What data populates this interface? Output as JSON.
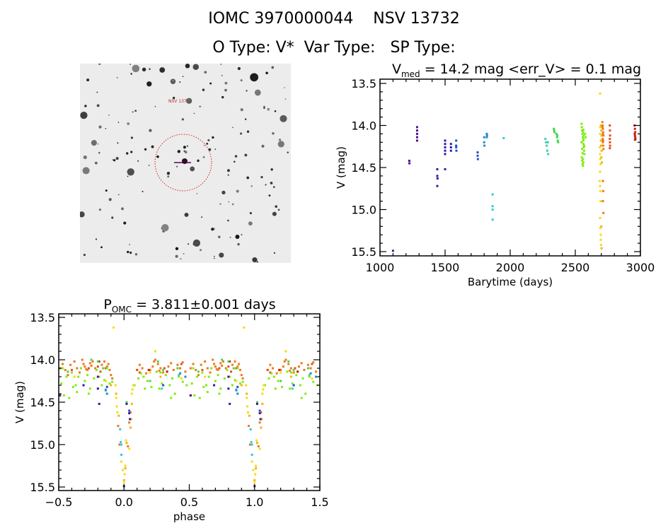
{
  "header": {
    "line1": "IOMC 3970000044    NSV 13732",
    "line2": "O Type: V*  Var Type:   SP Type:"
  },
  "image_panel": {
    "target_label": "NSV 13732"
  },
  "colors": {
    "purple": "#50108a",
    "indigo": "#3018a8",
    "blue": "#2050c8",
    "azure": "#1c8ad8",
    "cyan": "#30c8e0",
    "teal": "#40d0b0",
    "green": "#40d850",
    "lime": "#80ec10",
    "yellow": "#f4dc10",
    "gold": "#f4b010",
    "orange": "#f07818",
    "redorange": "#e05020",
    "red": "#d02010"
  },
  "chart_data": [
    {
      "type": "scatter",
      "title_main": "V",
      "title_sub": "med",
      "title_rest": " = 14.2 mag <err_V> = 0.1 mag",
      "xlabel": "Barytime (days)",
      "ylabel": "V (mag)",
      "xlim": [
        1000,
        3000
      ],
      "ylim": [
        15.5,
        13.5
      ],
      "xticks": [
        1000,
        1500,
        2000,
        2500,
        3000
      ],
      "xtick_labels": [
        "1000",
        "1500",
        "2000",
        "2500",
        "3000"
      ],
      "yticks": [
        13.5,
        14.0,
        14.5,
        15.0,
        15.5
      ],
      "ytick_labels": [
        "13.5",
        "14.0",
        "14.5",
        "15.0",
        "15.5"
      ],
      "series": [
        {
          "color": "purple",
          "x": [
            1100,
            1225,
            1226,
            1285,
            1285,
            1285,
            1285,
            1285
          ],
          "y": [
            15.49,
            14.42,
            14.45,
            14.02,
            14.06,
            14.1,
            14.14,
            14.18
          ]
        },
        {
          "color": "indigo",
          "x": [
            1440,
            1440,
            1442,
            1440,
            1500,
            1500,
            1500,
            1500,
            1500,
            1500,
            1545,
            1545,
            1545
          ],
          "y": [
            14.52,
            14.6,
            14.63,
            14.72,
            14.18,
            14.22,
            14.26,
            14.3,
            14.34,
            14.52,
            14.22,
            14.26,
            14.3
          ]
        },
        {
          "color": "blue",
          "x": [
            1585,
            1585,
            1585,
            1587,
            1750,
            1750,
            1752
          ],
          "y": [
            14.18,
            14.24,
            14.26,
            14.3,
            14.32,
            14.36,
            14.4
          ]
        },
        {
          "color": "azure",
          "x": [
            1800,
            1800,
            1802,
            1820,
            1822,
            1820
          ],
          "y": [
            14.14,
            14.2,
            14.24,
            14.1,
            14.12,
            14.14
          ]
        },
        {
          "color": "cyan",
          "x": [
            1865,
            1865,
            1865,
            1865,
            1950
          ],
          "y": [
            14.82,
            14.96,
            15.0,
            15.12,
            14.15
          ]
        },
        {
          "color": "teal",
          "x": [
            2270,
            2275,
            2280,
            2285,
            2290,
            2292
          ],
          "y": [
            14.16,
            14.2,
            14.24,
            14.3,
            14.2,
            14.34
          ]
        },
        {
          "color": "green",
          "x": [
            2335,
            2338,
            2340,
            2355,
            2360,
            2362,
            2365,
            2368
          ],
          "y": [
            14.04,
            14.06,
            14.08,
            14.1,
            14.14,
            14.12,
            14.18,
            14.2
          ]
        },
        {
          "color": "lime",
          "x": [
            2548,
            2550,
            2552,
            2555,
            2558,
            2560,
            2562,
            2565,
            2568,
            2570,
            2550,
            2553,
            2556,
            2559,
            2562,
            2565,
            2548,
            2552,
            2556,
            2560,
            2564,
            2568,
            2575,
            2580,
            2558,
            2562
          ],
          "y": [
            13.98,
            14.02,
            14.06,
            14.1,
            14.14,
            14.18,
            14.22,
            14.26,
            14.3,
            14.34,
            14.38,
            14.42,
            14.46,
            14.48,
            14.05,
            14.12,
            14.2,
            14.28,
            14.33,
            14.08,
            14.16,
            14.24,
            14.1,
            14.14,
            14.4,
            14.44
          ]
        },
        {
          "color": "yellow",
          "x": [
            2690,
            2692,
            2690,
            2695,
            2688,
            2690,
            2692,
            2694,
            2690,
            2688,
            2690,
            2692,
            2694,
            2690,
            2692,
            2696,
            2695,
            2698
          ],
          "y": [
            13.62,
            14.02,
            14.1,
            14.18,
            14.26,
            14.34,
            14.4,
            14.46,
            14.55,
            14.66,
            14.72,
            14.78,
            14.9,
            15.1,
            15.22,
            15.3,
            15.36,
            15.42
          ]
        },
        {
          "color": "gold",
          "x": [
            2698,
            2700,
            2702,
            2700,
            2698,
            2702,
            2700,
            2704,
            2700,
            2702
          ],
          "y": [
            14.0,
            14.06,
            14.12,
            14.18,
            14.24,
            14.3,
            14.38,
            14.44,
            15.2,
            15.46
          ]
        },
        {
          "color": "orange",
          "x": [
            2708,
            2710,
            2712,
            2714,
            2716,
            2710,
            2712,
            2714,
            2716,
            2708,
            2712,
            2714,
            2712,
            2714,
            2712,
            2716
          ],
          "y": [
            13.96,
            14.0,
            14.04,
            14.08,
            14.12,
            14.16,
            14.2,
            14.24,
            14.28,
            14.02,
            14.1,
            14.18,
            14.66,
            14.78,
            14.9,
            15.04
          ]
        },
        {
          "color": "redorange",
          "x": [
            2765,
            2766,
            2767,
            2765,
            2766,
            2767,
            2765
          ],
          "y": [
            14.0,
            14.06,
            14.12,
            14.16,
            14.2,
            14.24,
            14.27
          ]
        },
        {
          "color": "red",
          "x": [
            2955,
            2958,
            2960,
            2956,
            2958,
            2960,
            2962,
            2958
          ],
          "y": [
            14.0,
            14.04,
            14.08,
            14.1,
            14.12,
            14.14,
            14.16,
            14.17
          ]
        }
      ]
    },
    {
      "type": "scatter",
      "title_main": "P",
      "title_sub": "OMC",
      "title_rest": " = 3.811±0.001 days",
      "xlabel": "phase",
      "ylabel": "V (mag)",
      "xlim": [
        -0.5,
        1.5
      ],
      "ylim": [
        15.5,
        13.5
      ],
      "xticks": [
        -0.5,
        0.0,
        0.5,
        1.0,
        1.5
      ],
      "xtick_labels": [
        "−0.5",
        "0.0",
        "0.5",
        "1.0",
        "1.5"
      ],
      "yticks": [
        13.5,
        14.0,
        14.5,
        15.0,
        15.5
      ],
      "ytick_labels": [
        "13.5",
        "14.0",
        "14.5",
        "15.0",
        "15.5"
      ],
      "phase_repeat": 1,
      "series": [
        {
          "color": "orange",
          "x": [
            -0.49,
            -0.47,
            -0.45,
            -0.43,
            -0.41,
            -0.38,
            -0.36,
            -0.34,
            -0.32,
            -0.3,
            -0.28,
            -0.26,
            -0.24,
            -0.22,
            -0.17,
            -0.15,
            -0.13,
            -0.12,
            -0.11,
            -0.1,
            -0.045,
            -0.035,
            0.03,
            0.04,
            0.05,
            0.1,
            0.12,
            0.14,
            0.17,
            0.2,
            0.22,
            0.24,
            0.26,
            0.28,
            0.3,
            0.34,
            0.36,
            0.38,
            0.41,
            0.43,
            0.45,
            0.47,
            -0.31,
            -0.29,
            -0.25,
            0.23,
            0.27,
            -0.09
          ],
          "y": [
            14.1,
            14.05,
            14.12,
            14.18,
            14.06,
            14.02,
            14.1,
            14.15,
            14.0,
            14.08,
            14.12,
            14.04,
            14.02,
            14.1,
            14.06,
            14.02,
            14.08,
            14.05,
            14.12,
            14.18,
            14.78,
            15.0,
            15.02,
            14.74,
            14.62,
            14.12,
            14.06,
            14.1,
            14.16,
            14.12,
            14.08,
            14.0,
            14.05,
            14.1,
            14.15,
            14.08,
            14.04,
            14.12,
            14.06,
            14.1,
            14.03,
            14.14,
            14.05,
            14.11,
            14.07,
            14.02,
            14.13,
            14.22
          ]
        },
        {
          "color": "redorange",
          "x": [
            -0.2,
            -0.18,
            -0.14,
            0.1,
            0.12,
            0.19,
            0.31,
            0.33,
            0.44,
            -0.4,
            -0.27
          ],
          "y": [
            14.08,
            14.14,
            14.1,
            14.12,
            14.15,
            14.12,
            14.1,
            14.14,
            14.05,
            14.12,
            14.1
          ]
        },
        {
          "color": "red",
          "x": [
            0.19,
            0.33,
            -0.19
          ],
          "y": [
            14.12,
            14.14,
            14.02
          ]
        },
        {
          "color": "lime",
          "x": [
            -0.48,
            -0.46,
            -0.44,
            -0.42,
            -0.4,
            -0.37,
            -0.35,
            -0.33,
            -0.3,
            -0.28,
            -0.26,
            -0.23,
            -0.21,
            -0.17,
            -0.15,
            -0.13,
            -0.11,
            -0.09,
            0.08,
            0.11,
            0.13,
            0.15,
            0.18,
            0.21,
            0.25,
            0.27,
            0.29,
            0.32,
            0.35,
            0.37,
            0.39,
            0.42,
            0.45,
            0.48,
            -0.36,
            -0.27,
            -0.19,
            0.16,
            0.28,
            0.36,
            -0.47,
            -0.39
          ],
          "y": [
            14.28,
            14.42,
            14.2,
            14.45,
            14.15,
            14.3,
            14.2,
            14.1,
            14.25,
            14.18,
            14.34,
            14.22,
            14.12,
            14.3,
            14.24,
            14.1,
            14.28,
            14.26,
            14.3,
            14.22,
            14.16,
            14.2,
            14.25,
            14.32,
            14.14,
            14.34,
            14.28,
            14.18,
            14.3,
            14.22,
            14.4,
            14.2,
            14.26,
            14.3,
            14.38,
            14.4,
            14.2,
            14.34,
            14.15,
            14.45,
            14.1,
            14.32
          ]
        },
        {
          "color": "green",
          "x": [
            -0.25,
            -0.2,
            -0.16,
            0.02,
            0.26,
            0.3,
            0.41,
            -0.43,
            0.2
          ],
          "y": [
            14.0,
            14.02,
            14.1,
            14.5,
            14.02,
            14.12,
            14.1,
            14.14,
            14.25
          ]
        },
        {
          "color": "yellow",
          "x": [
            -0.08,
            -0.065,
            -0.06,
            -0.055,
            -0.05,
            -0.02,
            -0.01,
            0.0,
            0.005,
            0.01,
            0.015,
            0.06,
            0.065,
            0.07,
            0.24,
            -0.38,
            0.2,
            -0.14,
            0.44,
            0.04
          ],
          "y": [
            13.62,
            14.3,
            14.45,
            14.55,
            14.62,
            15.2,
            15.3,
            15.45,
            15.35,
            15.25,
            14.95,
            14.4,
            14.35,
            14.3,
            13.9,
            14.2,
            14.15,
            14.25,
            14.22,
            15.05
          ]
        },
        {
          "color": "gold",
          "x": [
            -0.06,
            -0.04,
            0.0,
            0.01,
            0.02,
            0.05,
            0.055,
            0.06,
            -0.1,
            0.28
          ],
          "y": [
            14.4,
            14.66,
            15.42,
            15.28,
            14.98,
            14.8,
            14.7,
            14.52,
            14.3,
            14.2
          ]
        },
        {
          "color": "teal",
          "x": [
            -0.14,
            0.42,
            0.29
          ],
          "y": [
            14.35,
            14.18,
            14.34
          ]
        },
        {
          "color": "cyan",
          "x": [
            -0.03,
            -0.025,
            -0.02,
            -0.02
          ],
          "y": [
            14.82,
            14.97,
            15.0,
            15.12
          ]
        },
        {
          "color": "azure",
          "x": [
            -0.14,
            -0.13,
            0.43,
            0.47
          ],
          "y": [
            14.36,
            14.4,
            14.16,
            14.2
          ]
        },
        {
          "color": "blue",
          "x": [
            -0.13,
            0.04,
            0.3
          ],
          "y": [
            14.32,
            14.6,
            14.3
          ]
        },
        {
          "color": "indigo",
          "x": [
            -0.19,
            -0.2,
            0.04,
            0.045,
            -0.31
          ],
          "y": [
            14.52,
            14.34,
            14.63,
            14.7,
            14.3
          ]
        },
        {
          "color": "purple",
          "x": [
            0.0,
            -0.49,
            0.02,
            0.51,
            -0.2
          ],
          "y": [
            15.49,
            14.42,
            14.52,
            14.42,
            14.2
          ]
        }
      ]
    }
  ]
}
